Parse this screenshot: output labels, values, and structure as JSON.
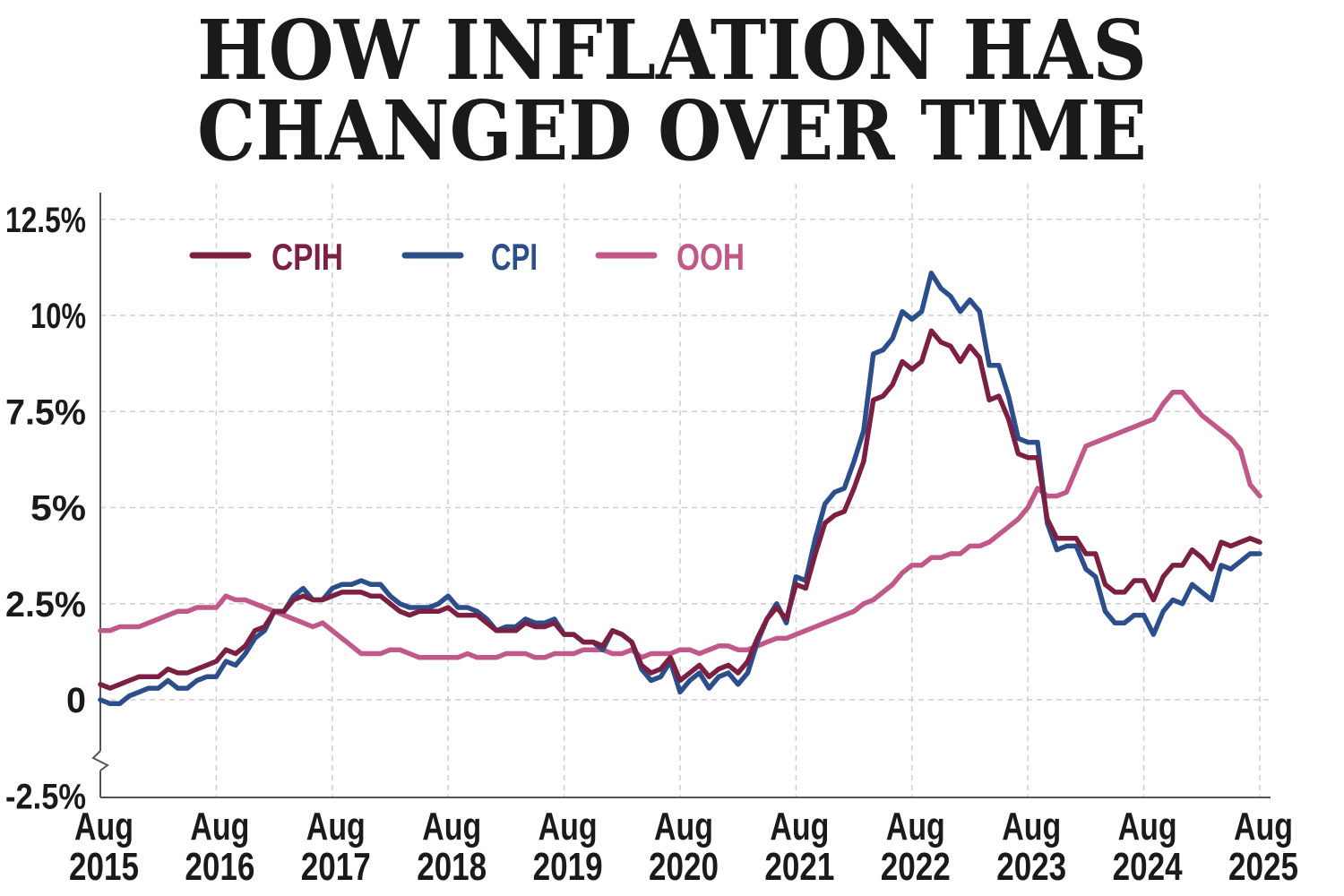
{
  "chart_data": {
    "type": "line",
    "title_lines": [
      "HOW INFLATION HAS",
      "CHANGED OVER TIME"
    ],
    "xlabel": "",
    "ylabel": "",
    "ylim": [
      -2.5,
      12.5
    ],
    "y_ticks": [
      {
        "value": 12.5,
        "label": "12.5%"
      },
      {
        "value": 10,
        "label": "10%"
      },
      {
        "value": 7.5,
        "label": "7.5%"
      },
      {
        "value": 5,
        "label": "5%"
      },
      {
        "value": 2.5,
        "label": "2.5%"
      },
      {
        "value": 0,
        "label": "0"
      },
      {
        "value": -2.5,
        "label": "-2.5%"
      }
    ],
    "x_ticks": [
      {
        "date": "2015-08",
        "month": "Aug",
        "year": "2015"
      },
      {
        "date": "2016-08",
        "month": "Aug",
        "year": "2016"
      },
      {
        "date": "2017-08",
        "month": "Aug",
        "year": "2017"
      },
      {
        "date": "2018-08",
        "month": "Aug",
        "year": "2018"
      },
      {
        "date": "2019-08",
        "month": "Aug",
        "year": "2019"
      },
      {
        "date": "2020-08",
        "month": "Aug",
        "year": "2020"
      },
      {
        "date": "2021-08",
        "month": "Aug",
        "year": "2021"
      },
      {
        "date": "2022-08",
        "month": "Aug",
        "year": "2022"
      },
      {
        "date": "2023-08",
        "month": "Aug",
        "year": "2023"
      },
      {
        "date": "2024-08",
        "month": "Aug",
        "year": "2024"
      },
      {
        "date": "2025-08",
        "month": "Aug",
        "year": "2025"
      }
    ],
    "grid": true,
    "y_axis_break": true,
    "legend_placement": "top-left",
    "x": [
      "2015-08",
      "2015-09",
      "2015-10",
      "2015-11",
      "2015-12",
      "2016-01",
      "2016-02",
      "2016-03",
      "2016-04",
      "2016-05",
      "2016-06",
      "2016-07",
      "2016-08",
      "2016-09",
      "2016-10",
      "2016-11",
      "2016-12",
      "2017-01",
      "2017-02",
      "2017-03",
      "2017-04",
      "2017-05",
      "2017-06",
      "2017-07",
      "2017-08",
      "2017-09",
      "2017-10",
      "2017-11",
      "2017-12",
      "2018-01",
      "2018-02",
      "2018-03",
      "2018-04",
      "2018-05",
      "2018-06",
      "2018-07",
      "2018-08",
      "2018-09",
      "2018-10",
      "2018-11",
      "2018-12",
      "2019-01",
      "2019-02",
      "2019-03",
      "2019-04",
      "2019-05",
      "2019-06",
      "2019-07",
      "2019-08",
      "2019-09",
      "2019-10",
      "2019-11",
      "2019-12",
      "2020-01",
      "2020-02",
      "2020-03",
      "2020-04",
      "2020-05",
      "2020-06",
      "2020-07",
      "2020-08",
      "2020-09",
      "2020-10",
      "2020-11",
      "2020-12",
      "2021-01",
      "2021-02",
      "2021-03",
      "2021-04",
      "2021-05",
      "2021-06",
      "2021-07",
      "2021-08",
      "2021-09",
      "2021-10",
      "2021-11",
      "2021-12",
      "2022-01",
      "2022-02",
      "2022-03",
      "2022-04",
      "2022-05",
      "2022-06",
      "2022-07",
      "2022-08",
      "2022-09",
      "2022-10",
      "2022-11",
      "2022-12",
      "2023-01",
      "2023-02",
      "2023-03",
      "2023-04",
      "2023-05",
      "2023-06",
      "2023-07",
      "2023-08",
      "2023-09",
      "2023-10",
      "2023-11",
      "2023-12",
      "2024-01",
      "2024-02",
      "2024-03",
      "2024-04",
      "2024-05",
      "2024-06",
      "2024-07",
      "2024-08",
      "2024-09",
      "2024-10",
      "2024-11",
      "2024-12",
      "2025-01",
      "2025-02",
      "2025-03",
      "2025-04",
      "2025-05",
      "2025-06",
      "2025-07",
      "2025-08"
    ],
    "series": [
      {
        "name": "CPIH",
        "color": "#7b1f43",
        "values": [
          0.4,
          0.3,
          0.4,
          0.5,
          0.6,
          0.6,
          0.6,
          0.8,
          0.7,
          0.7,
          0.8,
          0.9,
          1.0,
          1.3,
          1.2,
          1.4,
          1.8,
          1.9,
          2.3,
          2.3,
          2.6,
          2.7,
          2.6,
          2.6,
          2.7,
          2.8,
          2.8,
          2.8,
          2.7,
          2.7,
          2.5,
          2.3,
          2.2,
          2.3,
          2.3,
          2.3,
          2.4,
          2.2,
          2.2,
          2.2,
          2.0,
          1.8,
          1.8,
          1.8,
          2.0,
          1.9,
          1.9,
          2.0,
          1.7,
          1.7,
          1.5,
          1.5,
          1.4,
          1.8,
          1.7,
          1.5,
          0.9,
          0.7,
          0.8,
          1.1,
          0.5,
          0.7,
          0.9,
          0.6,
          0.8,
          0.9,
          0.7,
          1.0,
          1.6,
          2.1,
          2.4,
          2.1,
          3.0,
          2.9,
          3.8,
          4.6,
          4.8,
          4.9,
          5.5,
          6.2,
          7.8,
          7.9,
          8.2,
          8.8,
          8.6,
          8.8,
          9.6,
          9.3,
          9.2,
          8.8,
          9.2,
          8.9,
          7.8,
          7.9,
          7.3,
          6.4,
          6.3,
          6.3,
          4.7,
          4.2,
          4.2,
          4.2,
          3.8,
          3.8,
          3.0,
          2.8,
          2.8,
          3.1,
          3.1,
          2.6,
          3.2,
          3.5,
          3.5,
          3.9,
          3.7,
          3.4,
          4.1,
          4.0,
          4.1,
          4.2,
          4.1
        ]
      },
      {
        "name": "CPI",
        "color": "#2c4f8c",
        "values": [
          0.0,
          -0.1,
          -0.1,
          0.1,
          0.2,
          0.3,
          0.3,
          0.5,
          0.3,
          0.3,
          0.5,
          0.6,
          0.6,
          1.0,
          0.9,
          1.2,
          1.6,
          1.8,
          2.3,
          2.3,
          2.7,
          2.9,
          2.6,
          2.6,
          2.9,
          3.0,
          3.0,
          3.1,
          3.0,
          3.0,
          2.7,
          2.5,
          2.4,
          2.4,
          2.4,
          2.5,
          2.7,
          2.4,
          2.4,
          2.3,
          2.1,
          1.8,
          1.9,
          1.9,
          2.1,
          2.0,
          2.0,
          2.1,
          1.7,
          1.7,
          1.5,
          1.5,
          1.3,
          1.8,
          1.7,
          1.5,
          0.8,
          0.5,
          0.6,
          1.0,
          0.2,
          0.5,
          0.7,
          0.3,
          0.6,
          0.7,
          0.4,
          0.7,
          1.5,
          2.1,
          2.5,
          2.0,
          3.2,
          3.1,
          4.2,
          5.1,
          5.4,
          5.5,
          6.2,
          7.0,
          9.0,
          9.1,
          9.4,
          10.1,
          9.9,
          10.1,
          11.1,
          10.7,
          10.5,
          10.1,
          10.4,
          10.1,
          8.7,
          8.7,
          7.9,
          6.8,
          6.7,
          6.7,
          4.6,
          3.9,
          4.0,
          4.0,
          3.4,
          3.2,
          2.3,
          2.0,
          2.0,
          2.2,
          2.2,
          1.7,
          2.3,
          2.6,
          2.5,
          3.0,
          2.8,
          2.6,
          3.5,
          3.4,
          3.6,
          3.8,
          3.8
        ]
      },
      {
        "name": "OOH",
        "color": "#c0588a",
        "values": [
          1.8,
          1.8,
          1.9,
          1.9,
          1.9,
          2.0,
          2.1,
          2.2,
          2.3,
          2.3,
          2.4,
          2.4,
          2.4,
          2.7,
          2.6,
          2.6,
          2.5,
          2.4,
          2.3,
          2.2,
          2.1,
          2.0,
          1.9,
          2.0,
          1.8,
          1.6,
          1.4,
          1.2,
          1.2,
          1.2,
          1.3,
          1.3,
          1.2,
          1.1,
          1.1,
          1.1,
          1.1,
          1.1,
          1.2,
          1.1,
          1.1,
          1.1,
          1.2,
          1.2,
          1.2,
          1.1,
          1.1,
          1.2,
          1.2,
          1.2,
          1.3,
          1.3,
          1.3,
          1.2,
          1.2,
          1.3,
          1.1,
          1.2,
          1.2,
          1.2,
          1.3,
          1.3,
          1.2,
          1.3,
          1.4,
          1.4,
          1.3,
          1.3,
          1.4,
          1.5,
          1.6,
          1.6,
          1.7,
          1.8,
          1.9,
          2.0,
          2.1,
          2.2,
          2.3,
          2.5,
          2.6,
          2.8,
          3.0,
          3.3,
          3.5,
          3.5,
          3.7,
          3.7,
          3.8,
          3.8,
          4.0,
          4.0,
          4.1,
          4.3,
          4.5,
          4.7,
          5.0,
          5.5,
          5.3,
          5.3,
          5.4,
          6.0,
          6.6,
          6.7,
          6.8,
          6.9,
          7.0,
          7.1,
          7.2,
          7.3,
          7.7,
          8.0,
          8.0,
          7.7,
          7.4,
          7.2,
          7.0,
          6.8,
          6.5,
          5.6,
          5.3
        ]
      }
    ]
  }
}
